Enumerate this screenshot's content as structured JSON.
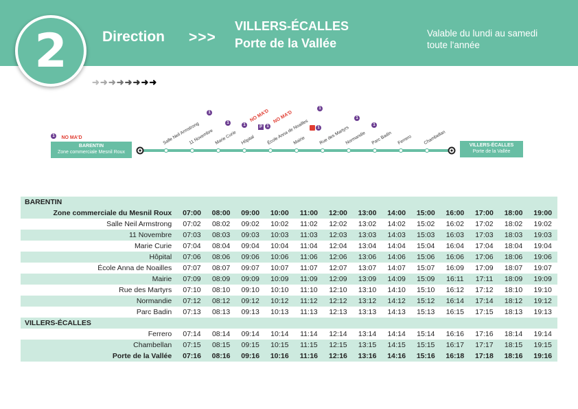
{
  "header": {
    "line_number": "2",
    "direction_label": "Direction",
    "arrows": ">>>",
    "destination_city": "VILLERS-ÉCALLES",
    "destination_stop": "Porte de la Vallée",
    "validity_line1": "Valable du lundi au samedi",
    "validity_line2": "toute l'année"
  },
  "diagram": {
    "start_city": "BARENTIN",
    "start_stop": "Zone commerciale Mesnil Roux",
    "end_city": "VILLERS-ÉCALLES",
    "end_stop": "Porte de la Vallée",
    "ondemand_label": "NO MA'D",
    "ondemand_badge": "1",
    "stops": [
      "Salle Neil Armstrong",
      "11 Novembre",
      "Marie Curie",
      "Hôpital",
      "École Anna de Noailles",
      "Mairie",
      "Rue des Martyrs",
      "Normandie",
      "Parc Badin",
      "Ferrero",
      "Chambellan"
    ]
  },
  "colors": {
    "accent": "#68bea4",
    "shade": "#cdeadf",
    "purple": "#6c3d91",
    "red": "#e03c31"
  },
  "timetable": {
    "sections": [
      {
        "city": "BARENTIN",
        "rows": [
          {
            "stop": "Zone commerciale du Mesnil Roux",
            "times": [
              "07:00",
              "08:00",
              "09:00",
              "10:00",
              "11:00",
              "12:00",
              "13:00",
              "14:00",
              "15:00",
              "16:00",
              "17:00",
              "18:00",
              "19:00"
            ]
          },
          {
            "stop": "Salle Neil Armstrong",
            "times": [
              "07:02",
              "08:02",
              "09:02",
              "10:02",
              "11:02",
              "12:02",
              "13:02",
              "14:02",
              "15:02",
              "16:02",
              "17:02",
              "18:02",
              "19:02"
            ]
          },
          {
            "stop": "11 Novembre",
            "times": [
              "07:03",
              "08:03",
              "09:03",
              "10:03",
              "11:03",
              "12:03",
              "13:03",
              "14:03",
              "15:03",
              "16:03",
              "17:03",
              "18:03",
              "19:03"
            ]
          },
          {
            "stop": "Marie Curie",
            "times": [
              "07:04",
              "08:04",
              "09:04",
              "10:04",
              "11:04",
              "12:04",
              "13:04",
              "14:04",
              "15:04",
              "16:04",
              "17:04",
              "18:04",
              "19:04"
            ]
          },
          {
            "stop": "Hôpital",
            "times": [
              "07:06",
              "08:06",
              "09:06",
              "10:06",
              "11:06",
              "12:06",
              "13:06",
              "14:06",
              "15:06",
              "16:06",
              "17:06",
              "18:06",
              "19:06"
            ]
          },
          {
            "stop": "École Anna de Noailles",
            "times": [
              "07:07",
              "08:07",
              "09:07",
              "10:07",
              "11:07",
              "12:07",
              "13:07",
              "14:07",
              "15:07",
              "16:09",
              "17:09",
              "18:07",
              "19:07"
            ]
          },
          {
            "stop": "Mairie",
            "times": [
              "07:09",
              "08:09",
              "09:09",
              "10:09",
              "11:09",
              "12:09",
              "13:09",
              "14:09",
              "15:09",
              "16:11",
              "17:11",
              "18:09",
              "19:09"
            ]
          },
          {
            "stop": "Rue des Martyrs",
            "times": [
              "07:10",
              "08:10",
              "09:10",
              "10:10",
              "11:10",
              "12:10",
              "13:10",
              "14:10",
              "15:10",
              "16:12",
              "17:12",
              "18:10",
              "19:10"
            ]
          },
          {
            "stop": "Normandie",
            "times": [
              "07:12",
              "08:12",
              "09:12",
              "10:12",
              "11:12",
              "12:12",
              "13:12",
              "14:12",
              "15:12",
              "16:14",
              "17:14",
              "18:12",
              "19:12"
            ]
          },
          {
            "stop": "Parc Badin",
            "times": [
              "07:13",
              "08:13",
              "09:13",
              "10:13",
              "11:13",
              "12:13",
              "13:13",
              "14:13",
              "15:13",
              "16:15",
              "17:15",
              "18:13",
              "19:13"
            ]
          }
        ]
      },
      {
        "city": "VILLERS-ÉCALLES",
        "rows": [
          {
            "stop": "Ferrero",
            "times": [
              "07:14",
              "08:14",
              "09:14",
              "10:14",
              "11:14",
              "12:14",
              "13:14",
              "14:14",
              "15:14",
              "16:16",
              "17:16",
              "18:14",
              "19:14"
            ]
          },
          {
            "stop": "Chambellan",
            "times": [
              "07:15",
              "08:15",
              "09:15",
              "10:15",
              "11:15",
              "12:15",
              "13:15",
              "14:15",
              "15:15",
              "16:17",
              "17:17",
              "18:15",
              "19:15"
            ]
          },
          {
            "stop": "Porte de la Vallée",
            "times": [
              "07:16",
              "08:16",
              "09:16",
              "10:16",
              "11:16",
              "12:16",
              "13:16",
              "14:16",
              "15:16",
              "16:18",
              "17:18",
              "18:16",
              "19:16"
            ]
          }
        ]
      }
    ]
  }
}
